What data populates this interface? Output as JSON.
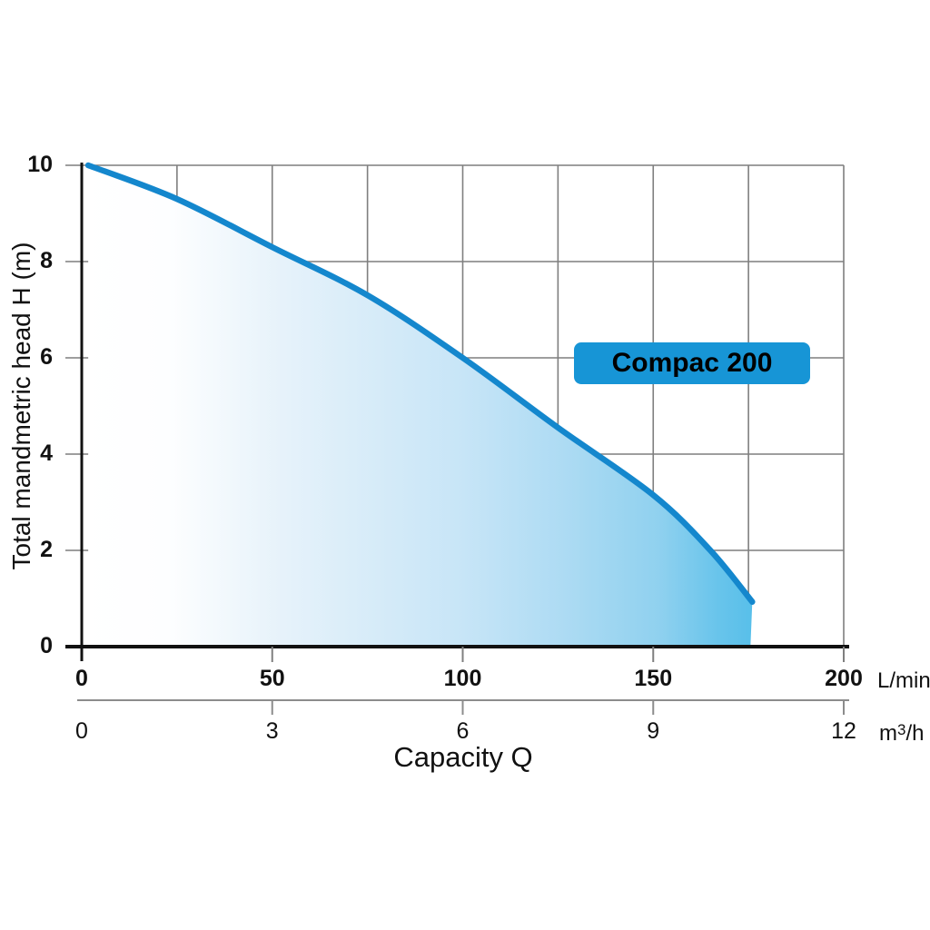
{
  "chart_data": {
    "type": "area",
    "title": "",
    "xlabel": "Capacity Q",
    "ylabel": "Total mandmetric head H (m)",
    "x_axis_primary": {
      "unit": "L/min",
      "ticks": [
        0,
        50,
        100,
        150,
        200
      ],
      "lim": [
        0,
        200
      ]
    },
    "x_axis_secondary": {
      "unit": {
        "pre": "m",
        "sup": "3",
        "post": "/h"
      },
      "ticks": [
        0,
        3,
        6,
        9,
        12
      ],
      "lim": [
        0,
        12
      ]
    },
    "y_axis": {
      "ticks": [
        0,
        2,
        4,
        6,
        8,
        10
      ],
      "lim": [
        0,
        10
      ]
    },
    "grid": {
      "on": true,
      "x_step_lmin": 25,
      "y_step_m": 2
    },
    "legend_position": "badge-inside-plot",
    "series": [
      {
        "name": "Compac 200",
        "x_unit": "L/min",
        "points_q_h": [
          [
            1.7,
            10.0
          ],
          [
            25,
            9.3
          ],
          [
            50,
            8.3
          ],
          [
            75,
            7.3
          ],
          [
            100,
            6.0
          ],
          [
            125,
            4.55
          ],
          [
            150,
            3.15
          ],
          [
            165,
            2.0
          ],
          [
            176,
            0.93
          ]
        ]
      }
    ]
  },
  "colors": {
    "curve": "#1487cd",
    "badge": "#1795d6",
    "grid": "#7f7f7f",
    "axis": "#111111",
    "secondary_axis": "#8c8c8c",
    "fill_stops": [
      {
        "off": 0.0,
        "color": "#ffffff"
      },
      {
        "off": 0.13,
        "color": "#fdfeff"
      },
      {
        "off": 0.3,
        "color": "#e6f2fa"
      },
      {
        "off": 0.57,
        "color": "#c7e5f7"
      },
      {
        "off": 0.72,
        "color": "#addbf3"
      },
      {
        "off": 0.86,
        "color": "#90d1ef"
      },
      {
        "off": 0.95,
        "color": "#68c4eb"
      },
      {
        "off": 1.0,
        "color": "#58bfea"
      }
    ]
  }
}
